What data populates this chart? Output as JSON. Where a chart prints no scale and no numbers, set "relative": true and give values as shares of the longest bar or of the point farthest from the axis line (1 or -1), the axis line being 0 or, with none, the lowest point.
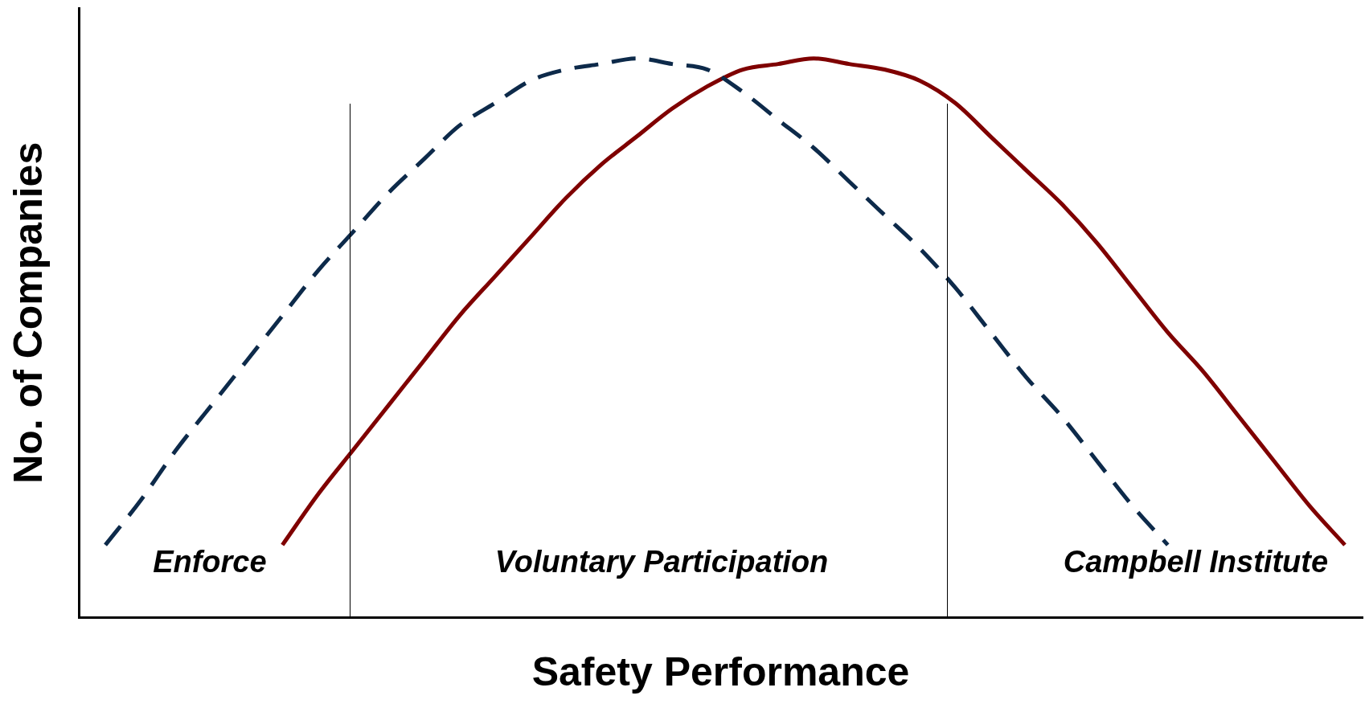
{
  "chart_data": {
    "type": "line",
    "relative": true,
    "xlabel": "Safety Performance",
    "ylabel": "No. of Companies",
    "legend": false,
    "grid": false,
    "marker": "none",
    "categories": [
      null,
      null,
      null,
      null,
      null,
      null,
      null,
      null,
      null,
      null,
      null,
      null,
      null,
      null,
      null,
      null,
      null,
      null,
      null,
      null,
      null,
      null,
      null,
      null,
      null,
      null,
      null,
      null,
      null,
      null,
      null,
      null,
      null,
      null,
      null,
      null
    ],
    "series": [
      {
        "color": "#0d2a4a",
        "line_style": "dashed",
        "values": [
          0.13,
          0.21,
          0.3,
          0.38,
          0.46,
          0.54,
          0.62,
          0.69,
          0.76,
          0.82,
          0.88,
          0.92,
          0.96,
          0.98,
          0.99,
          1,
          0.99,
          0.98,
          0.94,
          0.89,
          0.84,
          0.78,
          0.72,
          0.66,
          0.59,
          0.51,
          0.43,
          0.36,
          0.28,
          0.2,
          0.13,
          null,
          null,
          null,
          null,
          null
        ]
      },
      {
        "color": "#7f0000",
        "line_style": "solid",
        "values": [
          null,
          null,
          null,
          null,
          null,
          0.13,
          0.22,
          0.3,
          0.38,
          0.46,
          0.54,
          0.61,
          0.68,
          0.75,
          0.81,
          0.86,
          0.91,
          0.95,
          0.98,
          0.99,
          1,
          0.99,
          0.98,
          0.96,
          0.92,
          0.86,
          0.8,
          0.74,
          0.67,
          0.59,
          0.51,
          0.44,
          0.36,
          0.28,
          0.2,
          0.13
        ]
      }
    ],
    "annotations": [
      "Enforce",
      "Voluntary Participation",
      "Campbell Institute"
    ]
  }
}
